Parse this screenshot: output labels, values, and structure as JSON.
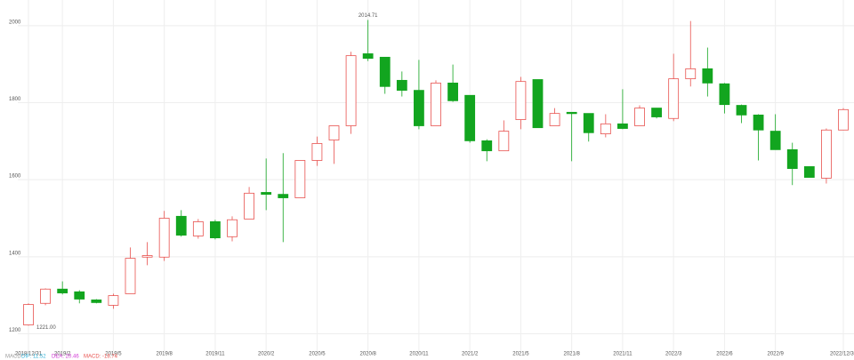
{
  "chart_data": {
    "type": "candlestick",
    "categories": [
      "2018/12/31",
      null,
      "2019/2",
      null,
      null,
      "2019/5",
      null,
      null,
      "2019/8",
      null,
      null,
      "2019/11",
      null,
      null,
      "2020/2",
      null,
      null,
      "2020/5",
      null,
      null,
      "2020/8",
      null,
      null,
      "2020/11",
      null,
      null,
      "2021/2",
      null,
      null,
      "2021/5",
      null,
      null,
      "2021/8",
      null,
      null,
      "2021/11",
      null,
      null,
      "2022/3",
      null,
      null,
      "2022/6",
      null,
      null,
      "2022/9",
      null,
      null,
      null,
      "2022/12/30"
    ],
    "open": [
      1223,
      1279,
      1316,
      1309,
      1288,
      1274,
      1304,
      1399,
      1399,
      1505,
      1454,
      1491,
      1452,
      1498,
      1567,
      1562,
      1553,
      1650,
      1703,
      1740,
      1927,
      1918,
      1858,
      1832,
      1740,
      1851,
      1819,
      1701,
      1675,
      1756,
      1860,
      1740,
      1775,
      1772,
      1719,
      1745,
      1740,
      1786,
      1759,
      1862,
      1888,
      1849,
      1793,
      1768,
      1726,
      1678,
      1634,
      1604,
      1729
    ],
    "close": [
      1276,
      1316,
      1306,
      1290,
      1281,
      1299,
      1396,
      1403,
      1500,
      1456,
      1491,
      1449,
      1496,
      1565,
      1562,
      1553,
      1650,
      1694,
      1740,
      1922,
      1915,
      1842,
      1832,
      1740,
      1851,
      1805,
      1701,
      1675,
      1726,
      1855,
      1735,
      1772,
      1772,
      1722,
      1745,
      1733,
      1786,
      1763,
      1862,
      1888,
      1851,
      1795,
      1768,
      1729,
      1678,
      1629,
      1606,
      1729,
      1782
    ],
    "high": [
      1279,
      1318,
      1336,
      1313,
      1290,
      1304,
      1424,
      1438,
      1519,
      1521,
      1498,
      1496,
      1505,
      1581,
      1655,
      1669,
      1650,
      1712,
      1740,
      1932,
      2014.71,
      1918,
      1881,
      1911,
      1858,
      1899,
      1819,
      1705,
      1754,
      1867,
      1860,
      1786,
      1775,
      1772,
      1770,
      1835,
      1793,
      1786,
      1927,
      2012,
      1943,
      1851,
      1795,
      1770,
      1770,
      1696,
      1634,
      1733,
      1786
    ],
    "low": [
      1221,
      1274,
      1302,
      1279,
      1279,
      1265,
      1304,
      1378,
      1389,
      1452,
      1447,
      1445,
      1440,
      1498,
      1521,
      1438,
      1553,
      1636,
      1641,
      1719,
      1908,
      1823,
      1816,
      1731,
      1740,
      1802,
      1696,
      1648,
      1675,
      1731,
      1735,
      1740,
      1648,
      1699,
      1710,
      1731,
      1740,
      1759,
      1752,
      1842,
      1816,
      1772,
      1747,
      1650,
      1678,
      1586,
      1606,
      1590,
      1729
    ],
    "up_color": "#e8524f",
    "down_color": "#12a51f",
    "ylim": [
      1155,
      2055
    ],
    "yticks": [
      1200,
      1400,
      1600,
      1800,
      2000
    ],
    "grid": true,
    "annotations": [
      {
        "text": "1221.00",
        "index": 0,
        "at": "low"
      },
      {
        "text": "2014.71",
        "index": 20,
        "at": "high"
      }
    ],
    "legend": [
      {
        "text": "MACD",
        "color": "#999999"
      },
      {
        "text": "DIF: 11.52",
        "color": "#37b3d8"
      },
      {
        "text": "DEA: 20.46",
        "color": "#d23ad6"
      },
      {
        "text": "MACD: -18.74",
        "color": "#e8524f"
      }
    ]
  }
}
